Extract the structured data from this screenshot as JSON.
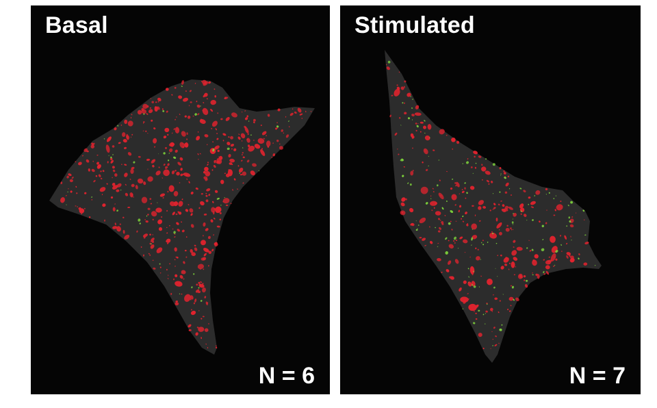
{
  "panels": [
    {
      "title": "Basal",
      "count_label": "N = 6",
      "colors": {
        "background": "#050505",
        "cell": "#2c2c2c",
        "red": "#e0232e",
        "green": "#7ed33b"
      }
    },
    {
      "title": "Stimulated",
      "count_label": "N = 7",
      "colors": {
        "background": "#050505",
        "cell": "#2c2c2c",
        "red": "#e0232e",
        "green": "#7ed33b"
      }
    }
  ]
}
